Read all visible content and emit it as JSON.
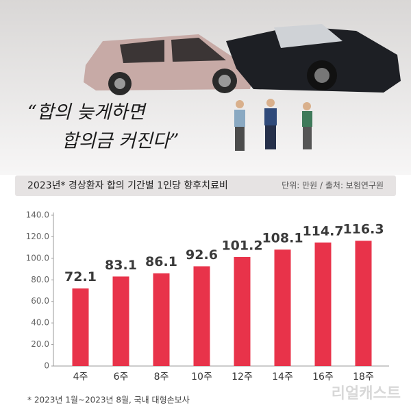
{
  "quote": [
    "“합의 늦게하면",
    "합의금 커진다”"
  ],
  "chart_data": {
    "type": "bar",
    "title": "2023년* 경상환자 합의 기간별 1인당 향후치료비",
    "subtitle": "단위: 만원 / 출처: 보험연구원",
    "categories": [
      "4주",
      "6주",
      "8주",
      "10주",
      "12주",
      "14주",
      "16주",
      "18주"
    ],
    "values": [
      72.1,
      83.1,
      86.1,
      92.6,
      101.2,
      108.1,
      114.7,
      116.3
    ],
    "color": "#e8334a",
    "ylim": [
      0,
      140
    ],
    "yticks": [
      0,
      {
        "value": 20,
        "label": "20.0"
      },
      {
        "value": 40,
        "label": "40.0"
      },
      {
        "value": 60,
        "label": "60.0"
      },
      {
        "value": 80,
        "label": "80.0"
      },
      {
        "value": 100,
        "label": "100.0"
      },
      {
        "value": 120,
        "label": "120.0"
      },
      {
        "value": 140,
        "label": "140.0"
      }
    ],
    "grid": false,
    "footnote": "* 2023년 1월~2023년 8월, 국내 대형손보사"
  },
  "watermark": "리얼캐스트"
}
